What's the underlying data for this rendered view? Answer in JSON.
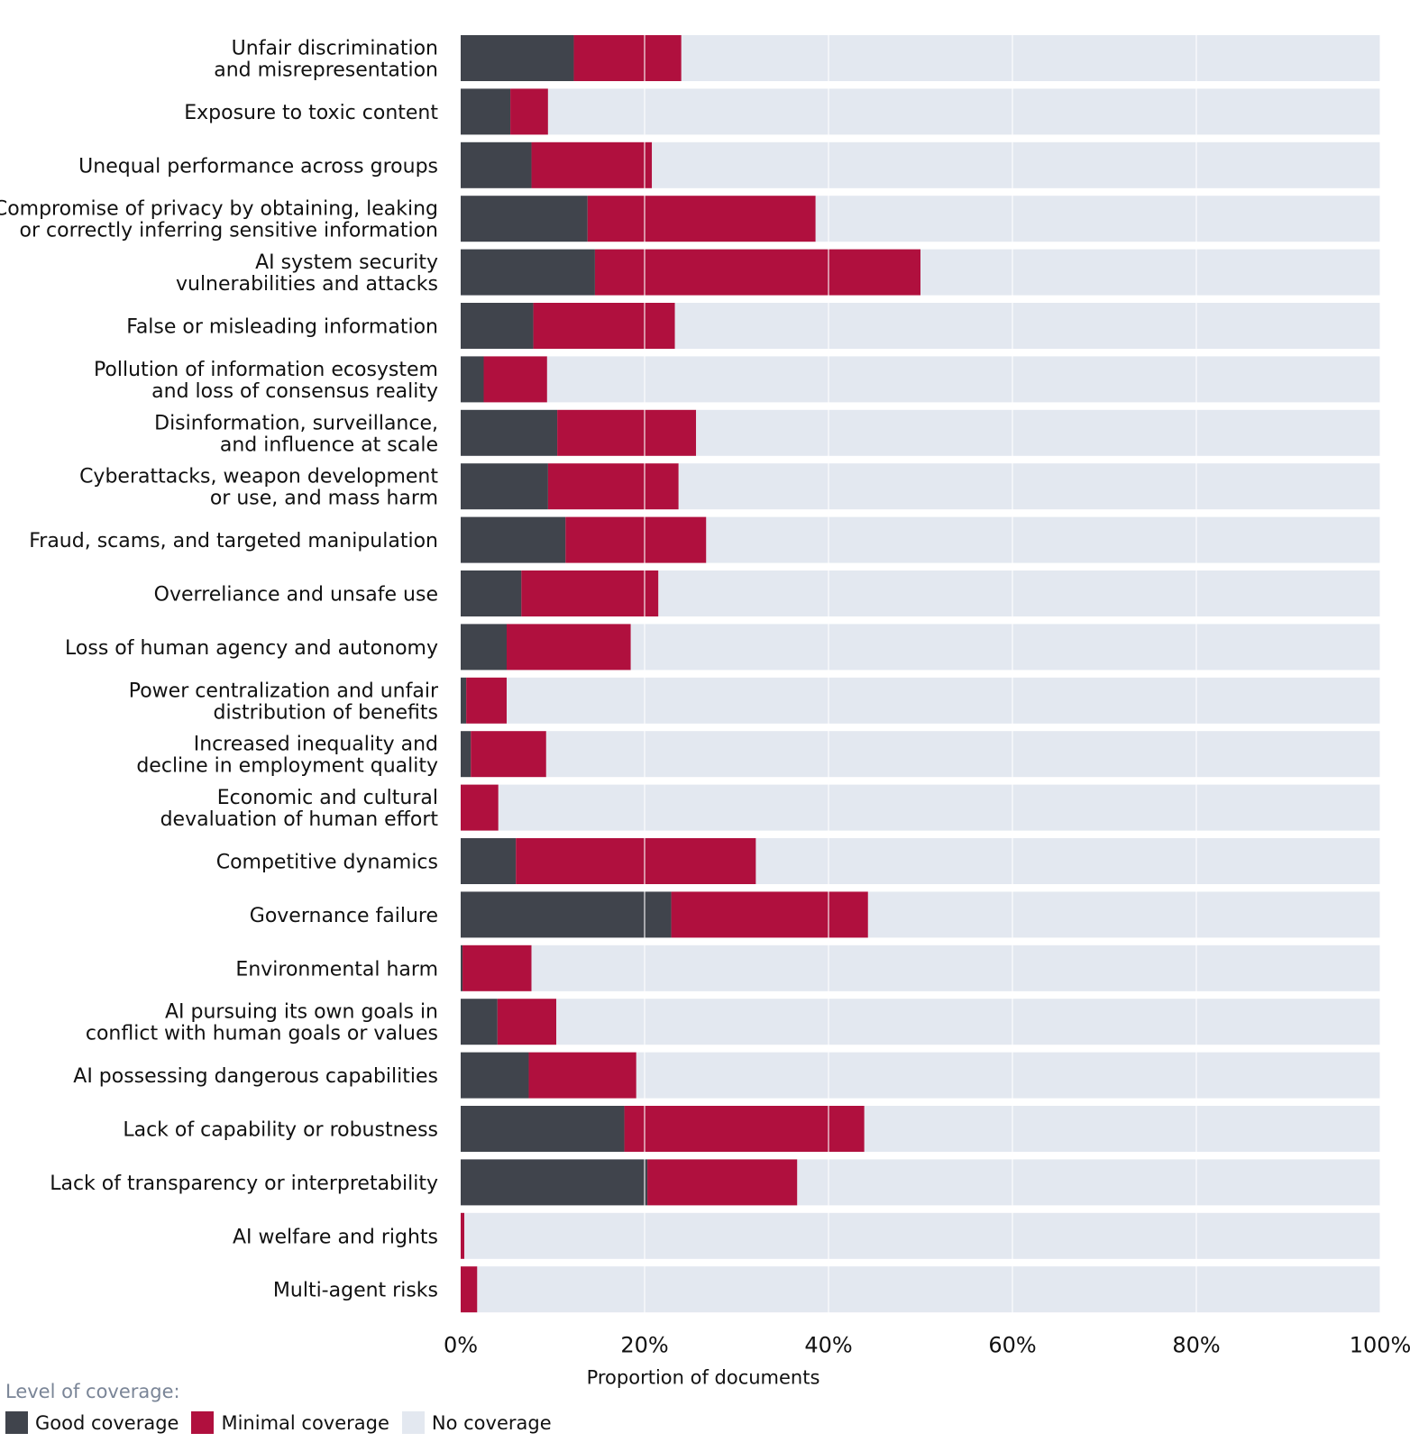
{
  "chart_data": {
    "type": "bar",
    "orientation": "horizontal",
    "stacked": true,
    "title": "",
    "xlabel": "Proportion of documents",
    "ylabel": "",
    "xlim": [
      0,
      100
    ],
    "xticks": [
      "0%",
      "20%",
      "40%",
      "60%",
      "80%",
      "100%"
    ],
    "grid": true,
    "legend_title": "Level of coverage:",
    "legend_position": "bottom-left",
    "categories": [
      "Unfair discrimination\nand misrepresentation",
      "Exposure to toxic content",
      "Unequal performance across groups",
      "Compromise of privacy by obtaining, leaking\nor correctly inferring sensitive information",
      "AI system security\nvulnerabilities and attacks",
      "False or misleading information",
      "Pollution of information ecosystem\nand loss of consensus reality",
      "Disinformation, surveillance,\nand influence at scale",
      "Cyberattacks, weapon development\nor use, and mass harm",
      "Fraud, scams, and targeted manipulation",
      "Overreliance and unsafe use",
      "Loss of human agency and autonomy",
      "Power centralization and unfair\ndistribution of benefits",
      "Increased inequality and\ndecline in employment quality",
      "Economic and cultural\ndevaluation of human effort",
      "Competitive dynamics",
      "Governance failure",
      "Environmental harm",
      "AI pursuing its own goals in\nconflict with human goals or values",
      "AI possessing dangerous capabilities",
      "Lack of capability or robustness",
      "Lack of transparency or interpretability",
      "AI welfare and rights",
      "Multi-agent risks"
    ],
    "series": [
      {
        "name": "Good coverage",
        "color": "#40444c",
        "values": [
          12.3,
          5.4,
          7.7,
          13.8,
          14.6,
          7.9,
          2.5,
          10.5,
          9.5,
          11.4,
          6.6,
          5.0,
          0.6,
          1.1,
          0.0,
          6.0,
          22.9,
          0.2,
          4.0,
          7.4,
          17.8,
          20.3,
          0.0,
          0.0
        ]
      },
      {
        "name": "Minimal coverage",
        "color": "#b0103e",
        "values": [
          11.7,
          4.1,
          13.1,
          24.8,
          35.4,
          15.4,
          6.9,
          15.1,
          14.2,
          15.3,
          14.9,
          13.5,
          4.4,
          8.2,
          4.1,
          26.1,
          21.4,
          7.5,
          6.4,
          11.7,
          26.1,
          16.3,
          0.4,
          1.8
        ]
      },
      {
        "name": "No coverage",
        "color": "#e3e8f0",
        "values": [
          76.0,
          90.5,
          79.2,
          61.4,
          50.0,
          76.7,
          90.6,
          74.4,
          76.3,
          73.3,
          78.5,
          81.5,
          95.0,
          90.7,
          95.9,
          67.9,
          55.7,
          92.3,
          89.6,
          80.9,
          56.1,
          63.4,
          99.6,
          98.2
        ]
      }
    ]
  }
}
